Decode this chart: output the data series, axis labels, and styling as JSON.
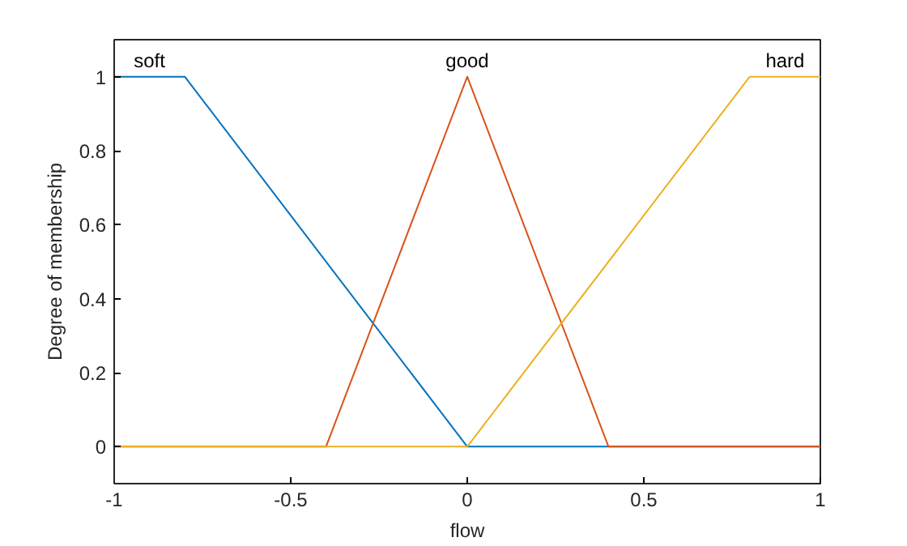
{
  "chart_data": {
    "type": "line",
    "xlabel": "flow",
    "ylabel": "Degree of membership",
    "xlim": [
      -1,
      1
    ],
    "ylim": [
      -0.1,
      1.1
    ],
    "xticks": [
      -1,
      -0.5,
      0,
      0.5,
      1
    ],
    "yticks": [
      0,
      0.2,
      0.4,
      0.6,
      0.8,
      1
    ],
    "grid": false,
    "legend": false,
    "series": [
      {
        "name": "soft",
        "color": "#0072bd",
        "x": [
          -1,
          -0.8,
          0,
          1
        ],
        "values": [
          1,
          1,
          0,
          0
        ]
      },
      {
        "name": "good",
        "color": "#d95319",
        "x": [
          -1,
          -0.4,
          0,
          0.4,
          1
        ],
        "values": [
          0,
          0,
          1,
          0,
          0
        ]
      },
      {
        "name": "hard",
        "color": "#edb120",
        "x": [
          -1,
          0,
          0.8,
          1
        ],
        "values": [
          0,
          0,
          1,
          1
        ]
      }
    ]
  }
}
